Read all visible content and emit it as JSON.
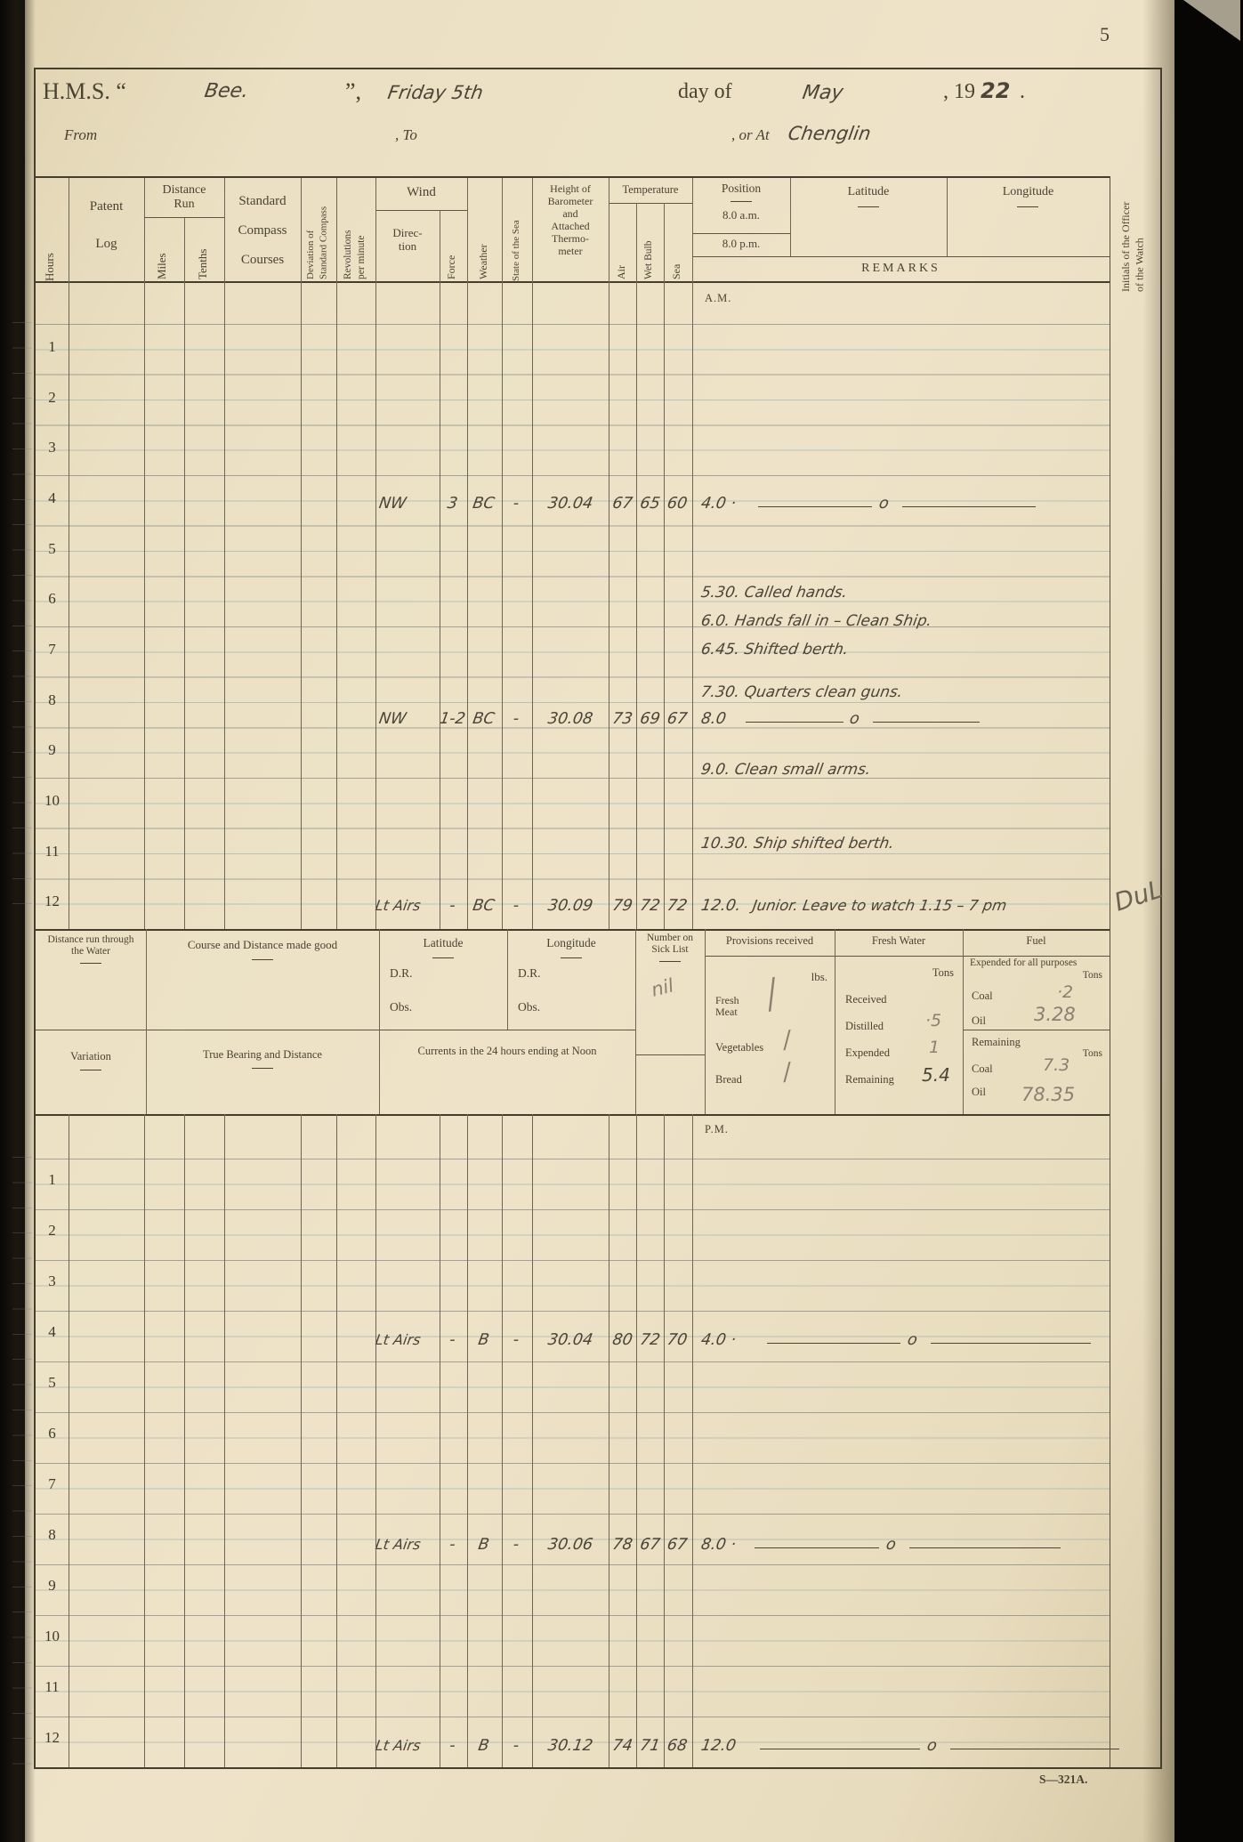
{
  "page": {
    "number": "5",
    "footer": "S—321A."
  },
  "header": {
    "hms": "H.M.S. “",
    "ship": "Bee.",
    "close": "”,",
    "date": "Friday 5th",
    "day_of": "day of",
    "month": "May",
    "year_printed": ", 19",
    "year_hw": "22",
    "period": ".",
    "from": "From",
    "to": ", To",
    "or_at": ", or At",
    "place": "Chenglin"
  },
  "cols": {
    "hours": "Hours",
    "patent": "Patent",
    "log": "Log",
    "distance_run": "Distance\nRun",
    "miles": "Miles",
    "tenths": "Tenths",
    "courses": "Standard\nCompass\nCourses",
    "deviation": "Deviation of\nStandard Compass",
    "revolutions": "Revolutions\nper minute",
    "wind": "Wind",
    "direction": "Direc-\ntion",
    "force": "Force",
    "weather": "Weather",
    "state_sea": "State of the Sea",
    "barometer": "Height of\nBarometer\nand\nAttached\nThermo-\nmeter",
    "temperature": "Temperature",
    "air": "Air",
    "wet": "Wet Bulb",
    "sea": "Sea",
    "position": "Position",
    "am8": "8.0 a.m.",
    "pm8": "8.0 p.m.",
    "latitude": "Latitude",
    "longitude": "Longitude",
    "remarks": "REMARKS",
    "initials": "Initials of the Officer\nof the Watch"
  },
  "am": {
    "label": "A.M.",
    "hours": [
      "1",
      "2",
      "3",
      "4",
      "5",
      "6",
      "7",
      "8",
      "9",
      "10",
      "11",
      "12"
    ],
    "e4": {
      "dir": "NW",
      "force": "3",
      "wx": "BC",
      "st": "-",
      "baro": "30.04",
      "air": "67",
      "wet": "65",
      "sea": "60",
      "time": "4.0 ·",
      "mid": "o"
    },
    "e8": {
      "dir": "NW",
      "force": "1-2",
      "wx": "BC",
      "st": "-",
      "baro": "30.08",
      "air": "73",
      "wet": "69",
      "sea": "67",
      "time": "8.0",
      "mid": "o"
    },
    "e12": {
      "dir": "Lt Airs",
      "force": "-",
      "wx": "BC",
      "st": "-",
      "baro": "30.09",
      "air": "79",
      "wet": "72",
      "sea": "72",
      "time": "12.0.",
      "note": "Junior. Leave to watch 1.15 – 7 pm"
    },
    "remarks": [
      "5.30. Called hands.",
      "6.0. Hands fall in – Clean Ship.",
      "6.45. Shifted berth.",
      "7.30. Quarters clean guns.",
      "9.0. Clean small arms.",
      "10.30. Ship shifted berth."
    ],
    "officer_initials": "DuL"
  },
  "noon": {
    "distance_water": "Distance run through\nthe Water",
    "course_good": "Course and Distance made good",
    "latitude": "Latitude",
    "longitude": "Longitude",
    "dr": "D.R.",
    "obs": "Obs.",
    "sick_list": "Number on\nSick List",
    "sick_value": "nil",
    "provisions": "Provisions received",
    "lbs": "lbs.",
    "fresh_meat": "Fresh\nMeat",
    "vegetables": "Vegetables",
    "bread": "Bread",
    "tick": "/",
    "fresh_water": "Fresh Water",
    "tons": "Tons",
    "received": "Received",
    "distilled": "Distilled",
    "distilled_value": "·5",
    "expended": "Expended",
    "expended_value": "1",
    "remaining": "Remaining",
    "remaining_value": "5.4",
    "fuel": "Fuel",
    "expended_all": "Expended for all purposes",
    "coal": "Coal",
    "coal_expended": "·2",
    "oil": "Oil",
    "oil_expended": "3.28",
    "fuel_remaining": "Remaining",
    "coal_remaining": "7.3",
    "oil_remaining": "78.35",
    "variation": "Variation",
    "true_bearing": "True Bearing and Distance",
    "currents": "Currents in the 24 hours ending at Noon"
  },
  "pm": {
    "label": "P.M.",
    "hours": [
      "1",
      "2",
      "3",
      "4",
      "5",
      "6",
      "7",
      "8",
      "9",
      "10",
      "11",
      "12"
    ],
    "e4": {
      "dir": "Lt Airs",
      "force": "-",
      "wx": "B",
      "st": "-",
      "baro": "30.04",
      "air": "80",
      "wet": "72",
      "sea": "70",
      "time": "4.0 ·",
      "mid": "o"
    },
    "e8": {
      "dir": "Lt Airs",
      "force": "-",
      "wx": "B",
      "st": "-",
      "baro": "30.06",
      "air": "78",
      "wet": "67",
      "sea": "67",
      "time": "8.0 ·",
      "mid": "o"
    },
    "e12": {
      "dir": "Lt Airs",
      "force": "-",
      "wx": "B",
      "st": "-",
      "baro": "30.12",
      "air": "74",
      "wet": "71",
      "sea": "68",
      "time": "12.0",
      "mid": "o"
    }
  }
}
